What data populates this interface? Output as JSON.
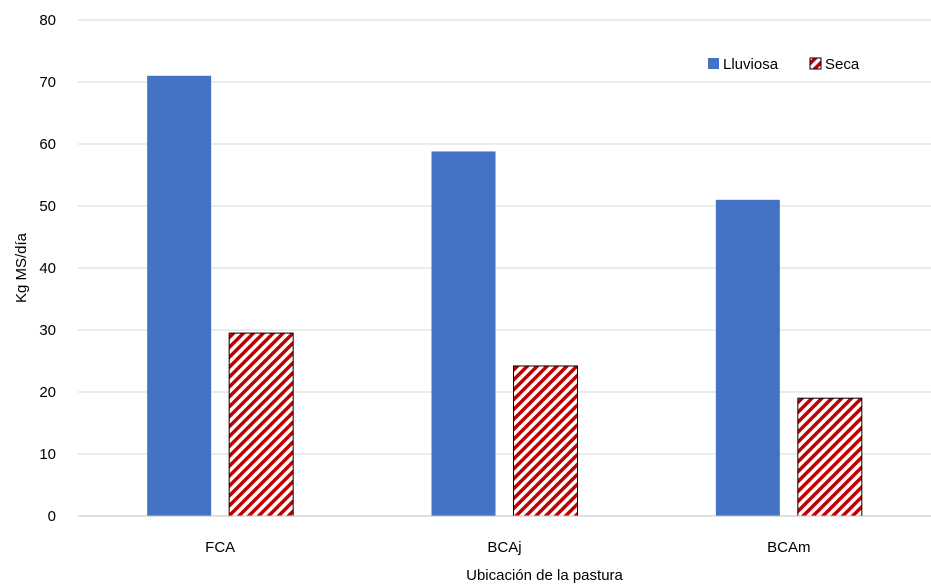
{
  "chart_data": {
    "type": "bar",
    "title": "",
    "xlabel": "Ubicación de la pastura",
    "ylabel": "Kg MS/día",
    "categories": [
      "FCA",
      "BCAj",
      "BCAm"
    ],
    "series": [
      {
        "name": "Lluviosa",
        "values": [
          71,
          58.8,
          51
        ],
        "color": "#4472c4",
        "fill": "solid"
      },
      {
        "name": "Seca",
        "values": [
          29.5,
          24.2,
          19
        ],
        "color": "#c00000",
        "fill": "diagonal-hatch"
      }
    ],
    "ylim": [
      0,
      80
    ],
    "yticks": [
      0,
      10,
      20,
      30,
      40,
      50,
      60,
      70,
      80
    ],
    "grid": true,
    "legend_position": "top-right"
  }
}
